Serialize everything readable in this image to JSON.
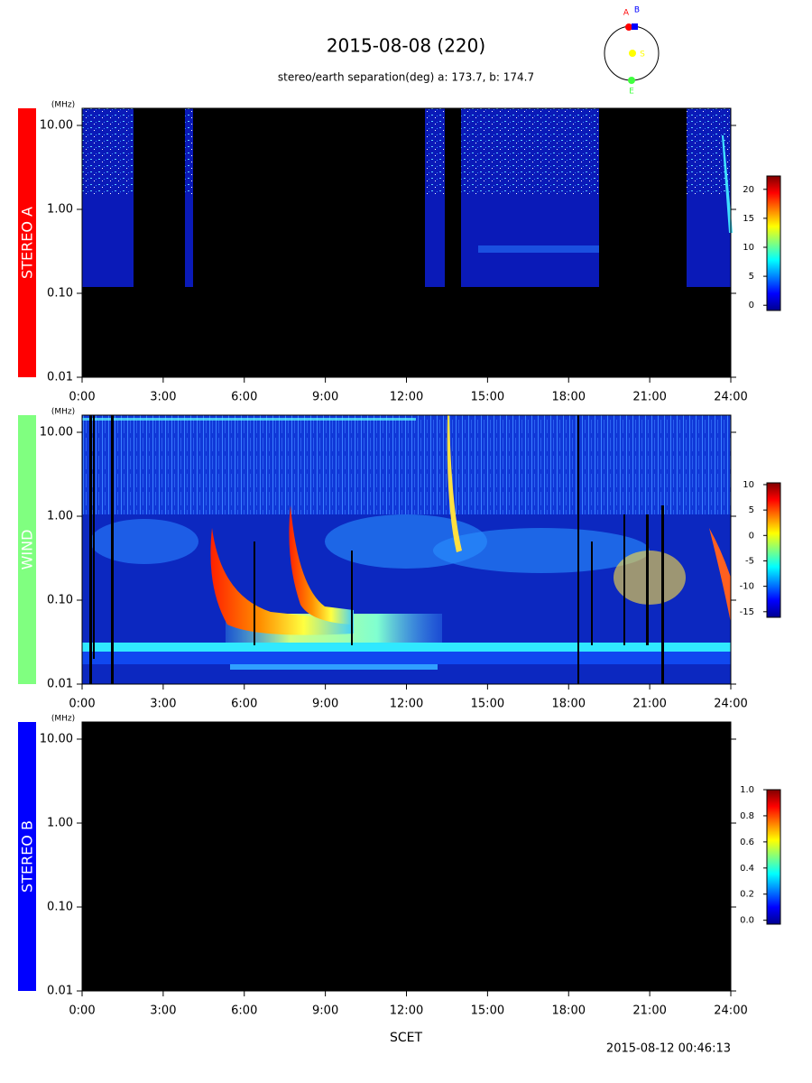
{
  "title": "2015-08-08 (220)",
  "subtitle": "stereo/earth separation(deg) a: 173.7, b: 174.7",
  "x_label": "SCET",
  "timestamp": "2015-08-12 00:46:13",
  "orbit": {
    "labels": [
      "A",
      "B",
      "S",
      "E"
    ]
  },
  "chart_data": [
    {
      "type": "spectrogram",
      "panel_label": "STEREO A",
      "panel_color": "#ff0000",
      "y_unit": "(MHz)",
      "log_scale": true,
      "xlim": [
        0,
        24
      ],
      "xticks": [
        {
          "value": 0,
          "label": "0:00"
        },
        {
          "value": 3,
          "label": "3:00"
        },
        {
          "value": 6,
          "label": "6:00"
        },
        {
          "value": 9,
          "label": "9:00"
        },
        {
          "value": 12,
          "label": "12:00"
        },
        {
          "value": 15,
          "label": "15:00"
        },
        {
          "value": 18,
          "label": "18:00"
        },
        {
          "value": 21,
          "label": "21:00"
        },
        {
          "value": 24,
          "label": "24:00"
        }
      ],
      "ylim": [
        0.01,
        16
      ],
      "yticks": [
        {
          "value": 0.01,
          "label": "0.01"
        },
        {
          "value": 0.1,
          "label": "0.10"
        },
        {
          "value": 1,
          "label": "1.00"
        },
        {
          "value": 10,
          "label": "10.00"
        }
      ],
      "colorbar": {
        "ylim": [
          -0.9,
          22.3
        ],
        "yticks": [
          0,
          5,
          10,
          15,
          20
        ]
      }
    },
    {
      "type": "spectrogram",
      "panel_label": "WIND",
      "panel_color": "#80ff80",
      "y_unit": "(MHz)",
      "log_scale": true,
      "xlim": [
        0,
        24
      ],
      "xticks": [
        {
          "value": 0,
          "label": "0:00"
        },
        {
          "value": 3,
          "label": "3:00"
        },
        {
          "value": 6,
          "label": "6:00"
        },
        {
          "value": 9,
          "label": "9:00"
        },
        {
          "value": 12,
          "label": "12:00"
        },
        {
          "value": 15,
          "label": "15:00"
        },
        {
          "value": 18,
          "label": "18:00"
        },
        {
          "value": 21,
          "label": "21:00"
        },
        {
          "value": 24,
          "label": "24:00"
        }
      ],
      "ylim": [
        0.01,
        16
      ],
      "yticks": [
        {
          "value": 0.01,
          "label": "0.01"
        },
        {
          "value": 0.1,
          "label": "0.10"
        },
        {
          "value": 1,
          "label": "1.00"
        },
        {
          "value": 10,
          "label": "10.00"
        }
      ],
      "colorbar": {
        "ylim": [
          -16.1,
          10.35
        ],
        "yticks": [
          -15,
          -10,
          -5,
          0,
          5,
          10
        ]
      }
    },
    {
      "type": "spectrogram",
      "panel_label": "STEREO B",
      "panel_color": "#0000ff",
      "y_unit": "(MHz)",
      "log_scale": true,
      "xlim": [
        0,
        24
      ],
      "xticks": [
        {
          "value": 0,
          "label": "0:00"
        },
        {
          "value": 3,
          "label": "3:00"
        },
        {
          "value": 6,
          "label": "6:00"
        },
        {
          "value": 9,
          "label": "9:00"
        },
        {
          "value": 12,
          "label": "12:00"
        },
        {
          "value": 15,
          "label": "15:00"
        },
        {
          "value": 18,
          "label": "18:00"
        },
        {
          "value": 21,
          "label": "21:00"
        },
        {
          "value": 24,
          "label": "24:00"
        }
      ],
      "ylim": [
        0.01,
        16
      ],
      "yticks": [
        {
          "value": 0.01,
          "label": "0.01"
        },
        {
          "value": 0.1,
          "label": "0.10"
        },
        {
          "value": 1,
          "label": "1.00"
        },
        {
          "value": 10,
          "label": "10.00"
        }
      ],
      "colorbar": {
        "ylim": [
          -0.03,
          1.0
        ],
        "yticks": [
          {
            "value": 0,
            "label": "0.0"
          },
          0.2,
          0.4,
          0.6,
          0.8,
          {
            "value": 1,
            "label": "1.0"
          }
        ]
      }
    }
  ]
}
